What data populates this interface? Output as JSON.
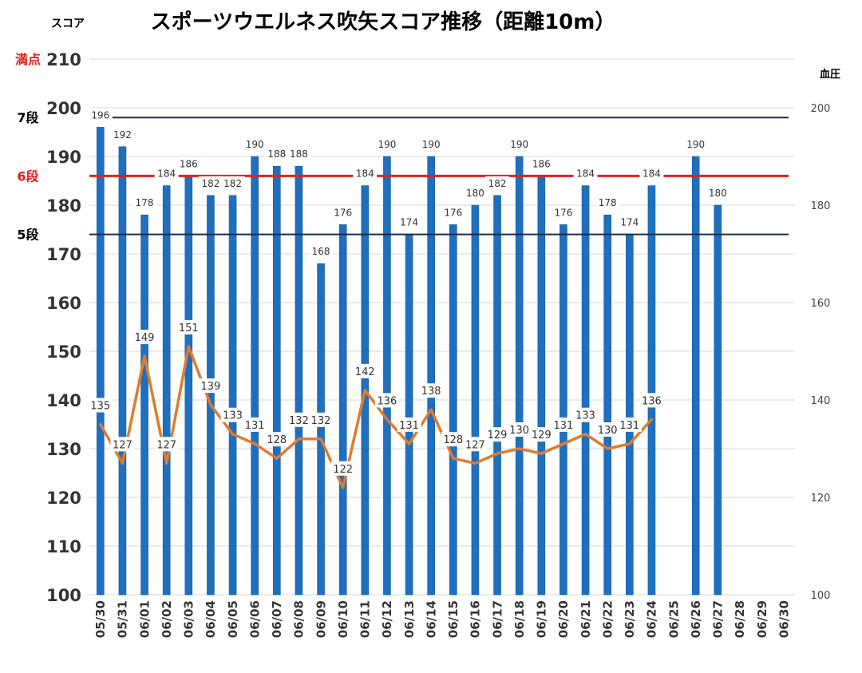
{
  "chart_data": {
    "type": "bar",
    "title": "スポーツウエルネス吹矢スコア推移（距離10m）",
    "ylabel_left": "スコア",
    "ylabel_right": "血圧",
    "categories": [
      "05/30",
      "05/31",
      "06/01",
      "06/02",
      "06/03",
      "06/04",
      "06/05",
      "06/06",
      "06/07",
      "06/08",
      "06/09",
      "06/10",
      "06/11",
      "06/12",
      "06/13",
      "06/14",
      "06/15",
      "06/16",
      "06/17",
      "06/18",
      "06/19",
      "06/20",
      "06/21",
      "06/22",
      "06/23",
      "06/24",
      "06/25",
      "06/26",
      "06/27",
      "06/28",
      "06/29",
      "06/30"
    ],
    "series": [
      {
        "type": "bar",
        "axis": "left",
        "color": "#1f6fbf",
        "values": [
          196,
          192,
          178,
          184,
          186,
          182,
          182,
          190,
          188,
          188,
          168,
          176,
          184,
          190,
          174,
          190,
          176,
          180,
          182,
          190,
          186,
          176,
          184,
          178,
          174,
          184,
          null,
          190,
          180,
          null,
          null,
          null
        ]
      },
      {
        "type": "line",
        "axis": "right",
        "color": "#e07b2e",
        "values": [
          135,
          127,
          149,
          127,
          151,
          139,
          133,
          131,
          128,
          132,
          132,
          122,
          142,
          136,
          131,
          138,
          128,
          127,
          129,
          130,
          129,
          131,
          133,
          130,
          131,
          136,
          null,
          null,
          null,
          null,
          null,
          null
        ]
      }
    ],
    "y_left": {
      "min": 100,
      "max": 210,
      "ticks": [
        100,
        110,
        120,
        130,
        140,
        150,
        160,
        170,
        180,
        190,
        200,
        210
      ]
    },
    "y_right": {
      "min": 100,
      "max": 200,
      "ticks": [
        100,
        120,
        140,
        160,
        180,
        200
      ]
    },
    "reference_lines": [
      {
        "label": "7段",
        "value": 198,
        "color": "#1a2a4a",
        "label_color": "#000000"
      },
      {
        "label": "6段",
        "value": 186,
        "color": "#e0201f",
        "label_color": "#e0201f"
      },
      {
        "label": "5段",
        "value": 174,
        "color": "#1a2a4a",
        "label_color": "#000000"
      }
    ],
    "max_label": {
      "text": "満点",
      "color": "#e0201f"
    },
    "grid": true,
    "legend": "none"
  }
}
